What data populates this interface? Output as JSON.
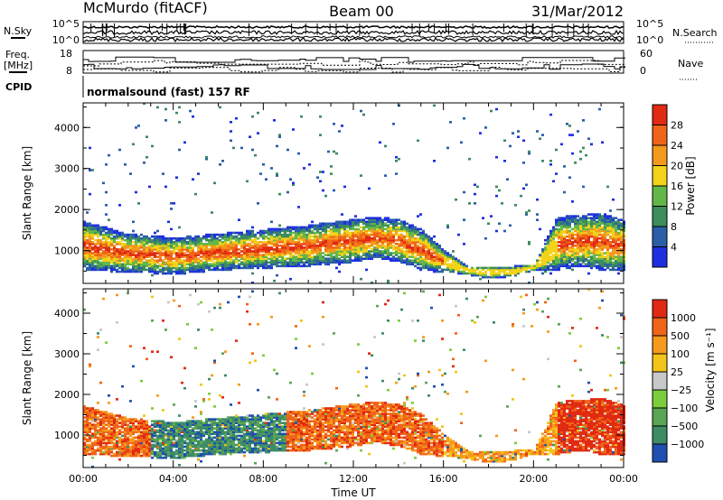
{
  "header": {
    "station": "McMurdo (fitACF)",
    "beam": "Beam 00",
    "date": "31/Mar/2012"
  },
  "top_panels": {
    "nsky_label": "N.Sky",
    "nsky_ticks": [
      "10^5",
      "10^0"
    ],
    "nsearch_label": "N.Search",
    "nsearch_ticks": [
      "10^5",
      "10^0"
    ],
    "freq_label_1": "Freq.",
    "freq_label_2": "[MHz]",
    "freq_ticks": [
      "18",
      "8"
    ],
    "nave_label": "Nave",
    "nave_ticks": [
      "60",
      "0"
    ],
    "cpid_label": "CPID",
    "cpid_text": "normalsound (fast) 157 RF"
  },
  "chart_data": [
    {
      "type": "heatmap",
      "quantity": "Power",
      "ylabel": "Slant Range [km]",
      "xlabel": "",
      "ylim": [
        200,
        4600
      ],
      "xlim": [
        "00:00",
        "24:00"
      ],
      "y_ticks": [
        "1000",
        "2000",
        "3000",
        "4000"
      ],
      "colorbar_label": "Power [dB]",
      "colorbar_ticks": [
        "4",
        "8",
        "12",
        "16",
        "20",
        "24",
        "28"
      ],
      "colorbar_colors": [
        "#1f2fe0",
        "#2a5fa8",
        "#3d8c5c",
        "#63b748",
        "#f3d21a",
        "#f39a1c",
        "#f06419",
        "#e02a12"
      ],
      "echo_band": {
        "hours": [
          0,
          2,
          4,
          6,
          8,
          10,
          12,
          13,
          14,
          15,
          16,
          17,
          18,
          19,
          20,
          21,
          22,
          23,
          24
        ],
        "lower_km": [
          500,
          450,
          400,
          500,
          550,
          600,
          700,
          800,
          700,
          500,
          450,
          400,
          300,
          350,
          500,
          500,
          600,
          500,
          500
        ],
        "upper_km": [
          1700,
          1400,
          1300,
          1400,
          1500,
          1600,
          1750,
          1800,
          1750,
          1500,
          1000,
          600,
          600,
          600,
          650,
          1800,
          1850,
          1900,
          1700
        ]
      }
    },
    {
      "type": "heatmap",
      "quantity": "Velocity",
      "ylabel": "Slant Range [km]",
      "xlabel": "Time UT",
      "ylim": [
        200,
        4600
      ],
      "x_ticks": [
        "00:00",
        "04:00",
        "08:00",
        "12:00",
        "16:00",
        "20:00",
        "00:00"
      ],
      "y_ticks": [
        "1000",
        "2000",
        "3000",
        "4000"
      ],
      "colorbar_label": "Velocity [m s⁻¹]",
      "colorbar_ticks": [
        "1000",
        "500",
        "100",
        "25",
        "−25",
        "−100",
        "−500",
        "−1000"
      ],
      "colorbar_colors": [
        "#1f4fb0",
        "#3d8c66",
        "#5aa553",
        "#7ccd3c",
        "#c8c8c8",
        "#f3c41a",
        "#f59a1c",
        "#f06419",
        "#e02a12"
      ]
    }
  ]
}
